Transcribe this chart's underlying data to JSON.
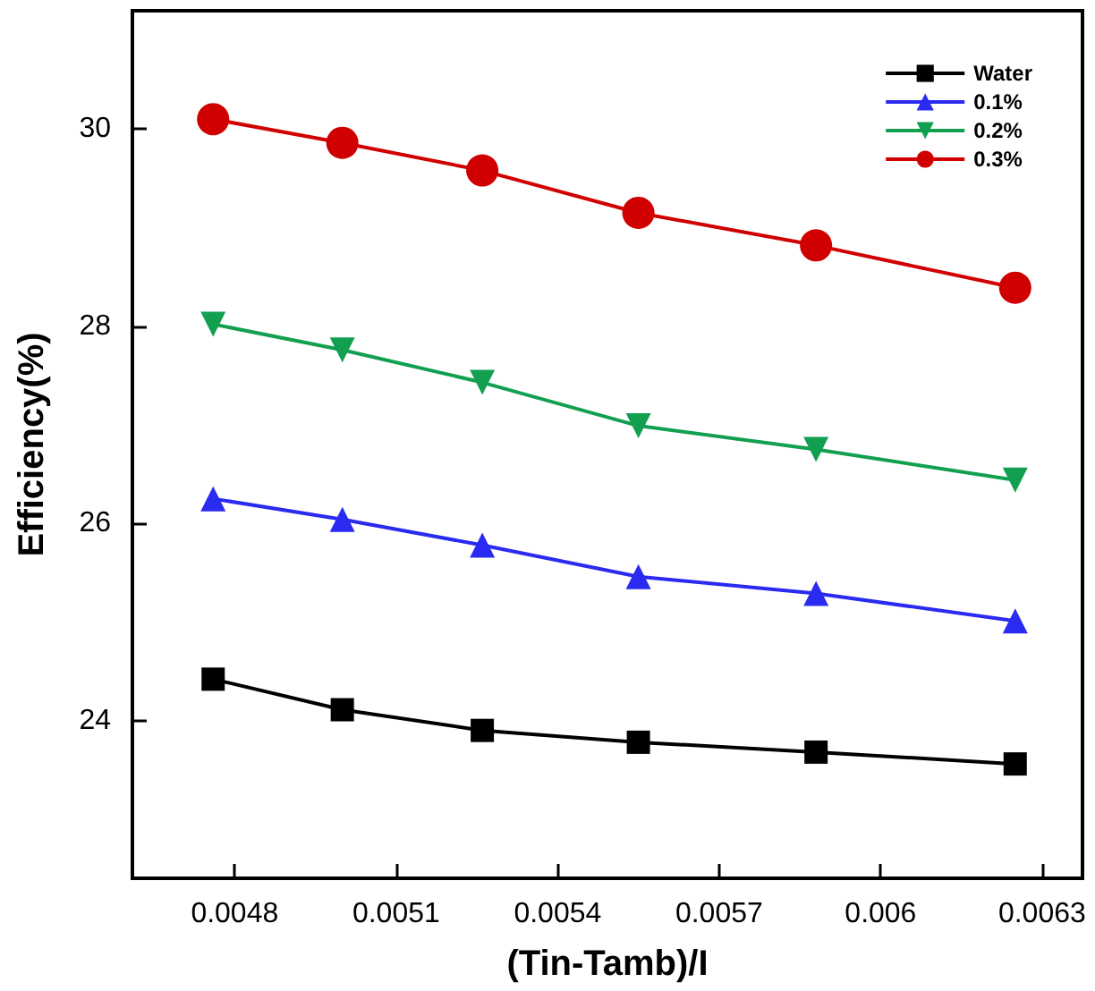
{
  "chart_data": {
    "type": "line",
    "xlabel": "(Tin-Tamb)/I",
    "ylabel": "Efficiency(%)",
    "x": [
      0.00476,
      0.005,
      0.00526,
      0.00555,
      0.00588,
      0.00625
    ],
    "series": [
      {
        "name": "Water",
        "color": "#000000",
        "marker": "square",
        "values": [
          24.42,
          24.11,
          23.9,
          23.78,
          23.68,
          23.56
        ]
      },
      {
        "name": "0.1%",
        "color": "#2a2af0",
        "marker": "triangle",
        "values": [
          26.25,
          26.04,
          25.78,
          25.46,
          25.29,
          25.01
        ]
      },
      {
        "name": "0.2%",
        "color": "#12a050",
        "marker": "triangle-down",
        "values": [
          28.02,
          27.76,
          27.43,
          26.99,
          26.75,
          26.44
        ]
      },
      {
        "name": "0.3%",
        "color": "#d00000",
        "marker": "circle",
        "values": [
          30.1,
          29.86,
          29.58,
          29.15,
          28.82,
          28.39
        ]
      }
    ],
    "xlim": [
      0.00461,
      0.006375
    ],
    "xticks": [
      0.0048,
      0.0051,
      0.0054,
      0.0057,
      0.006,
      0.0063
    ],
    "ylim": [
      22.4,
      31.2
    ],
    "yticks": [
      24,
      26,
      28,
      30
    ],
    "grid": false,
    "legend": "top right",
    "line_style": "solid"
  }
}
